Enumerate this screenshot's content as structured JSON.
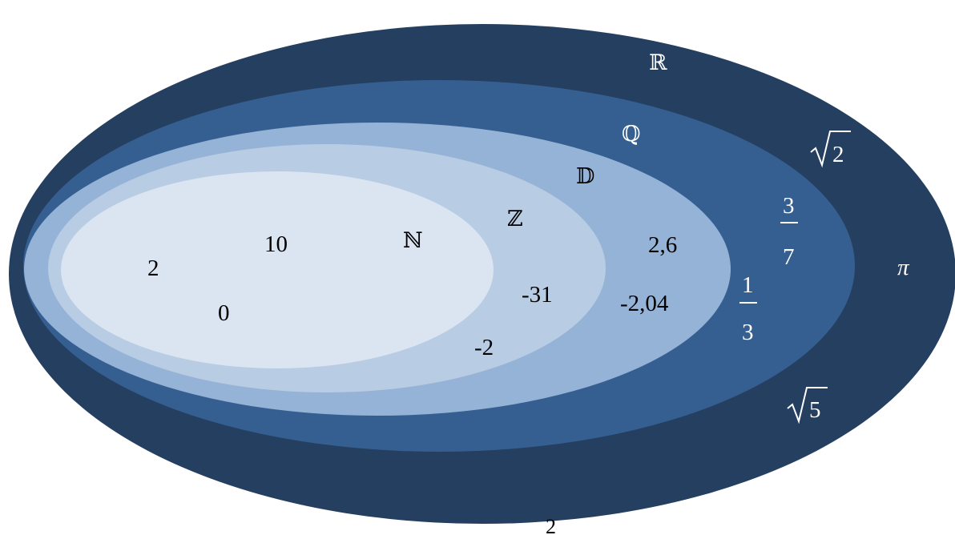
{
  "sets": {
    "R": "ℝ",
    "Q": "ℚ",
    "D": "𝔻",
    "Z": "ℤ",
    "N": "ℕ"
  },
  "colors": {
    "R": "#253F61",
    "Q": "#365F91",
    "D": "#95B3D7",
    "Z": "#B8CCE4",
    "N": "#DBE5F1"
  },
  "naturals": [
    "2",
    "10",
    "0"
  ],
  "integers": [
    "-31",
    "-2"
  ],
  "decimals": [
    "2,6",
    "-2,04"
  ],
  "rationals": {
    "frac1_num": "3",
    "frac1_den": "7",
    "frac2_num": "1",
    "frac2_den": "3"
  },
  "reals": {
    "sqrt2_radicand": "2",
    "sqrt5_radicand": "5",
    "pi": "π"
  },
  "page_number": "2"
}
